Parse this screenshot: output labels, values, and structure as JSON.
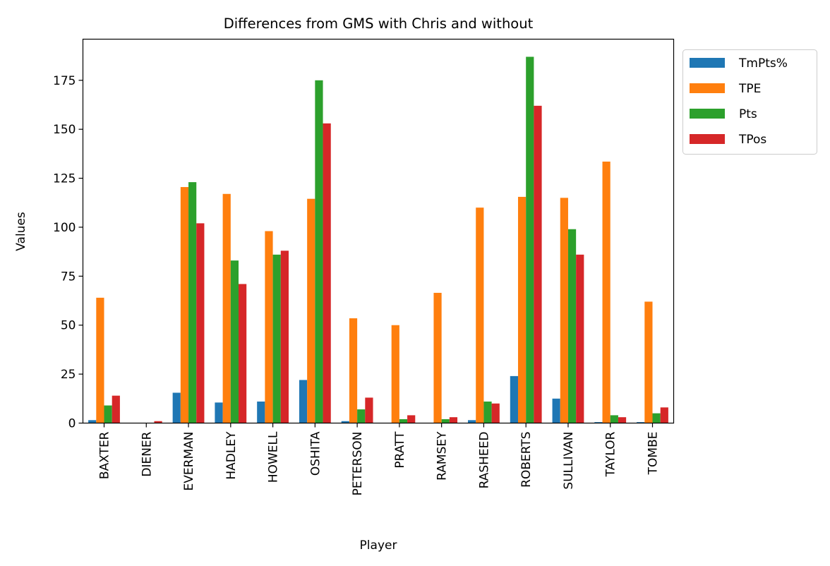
{
  "chart_data": {
    "type": "bar",
    "title": "Differences from GMS with Chris and without",
    "xlabel": "Player",
    "ylabel": "Values",
    "ylim": [
      0,
      196
    ],
    "yticks": [
      0,
      25,
      50,
      75,
      100,
      125,
      150,
      175
    ],
    "categories": [
      "BAXTER",
      "DIENER",
      "EVERMAN",
      "HADLEY",
      "HOWELL",
      "OSHITA",
      "PETERSON",
      "PRATT",
      "RAMSEY",
      "RASHEED",
      "ROBERTS",
      "SULLIVAN",
      "TAYLOR",
      "TOMBE"
    ],
    "legend_position": "outside top-right",
    "grid": false,
    "series": [
      {
        "name": "TmPts%",
        "color": "#1f77b4",
        "values": [
          1.5,
          0,
          15.5,
          10.5,
          11,
          22,
          1,
          0,
          0,
          1.5,
          24,
          12.5,
          0.5,
          0.5
        ]
      },
      {
        "name": "TPE",
        "color": "#ff7f0e",
        "values": [
          64,
          0,
          120.5,
          117,
          98,
          114.5,
          53.5,
          50,
          66.5,
          110,
          115.5,
          115,
          133.5,
          62
        ]
      },
      {
        "name": "Pts",
        "color": "#2ca02c",
        "values": [
          9,
          0,
          123,
          83,
          86,
          175,
          7,
          2,
          2,
          11,
          187,
          99,
          4,
          5
        ]
      },
      {
        "name": "TPos",
        "color": "#d62728",
        "values": [
          14,
          1,
          102,
          71,
          88,
          153,
          13,
          4,
          3,
          10,
          162,
          86,
          3,
          8
        ]
      }
    ]
  }
}
